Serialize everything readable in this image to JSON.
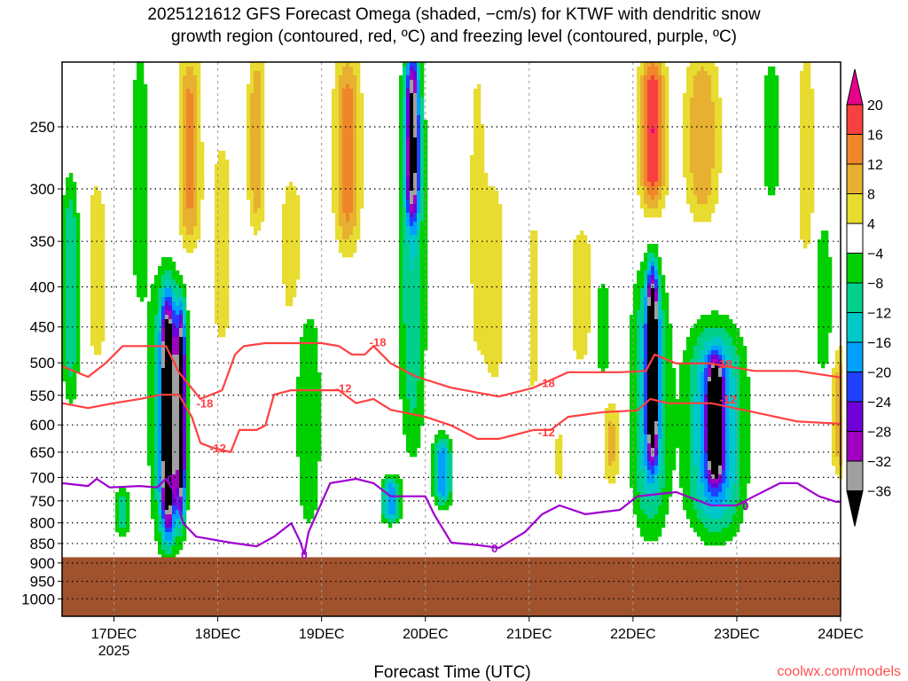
{
  "chart_data": {
    "type": "heatmap",
    "title_lines": [
      "2025121612 GFS Forecast Omega (shaded, −cm/s) for KTWF with dendritic snow",
      "growth region (contoured, red, ºC) and freezing level (contoured, purple, ºC)"
    ],
    "xlabel": "Forecast Time (UTC)",
    "watermark": "coolwx.com/models",
    "x_units": "hours since 2025-12-16 12Z",
    "xlim": [
      0,
      180
    ],
    "ylim_hPa": [
      207,
      1045
    ],
    "y_scale": "log",
    "x_ticks": [
      {
        "hour": 12,
        "label": "17DEC",
        "sublabel": "2025"
      },
      {
        "hour": 36,
        "label": "18DEC"
      },
      {
        "hour": 60,
        "label": "19DEC"
      },
      {
        "hour": 84,
        "label": "20DEC"
      },
      {
        "hour": 108,
        "label": "21DEC"
      },
      {
        "hour": 132,
        "label": "22DEC"
      },
      {
        "hour": 156,
        "label": "23DEC"
      },
      {
        "hour": 180,
        "label": "24DEC"
      }
    ],
    "y_ticks": [
      250,
      300,
      350,
      400,
      450,
      500,
      550,
      600,
      650,
      700,
      750,
      800,
      850,
      900,
      950,
      1000
    ],
    "ground_pressure_hPa": 885,
    "ground_color": "#a0522d",
    "colorbar": {
      "labels": [
        "20",
        "16",
        "12",
        "8",
        "4",
        "−4",
        "−8",
        "−12",
        "−16",
        "−20",
        "−24",
        "−28",
        "−32",
        "−36"
      ],
      "bins": [
        {
          "min": 20,
          "max": 99,
          "color": "#e8008c"
        },
        {
          "min": 16,
          "max": 20,
          "color": "#f84040"
        },
        {
          "min": 12,
          "max": 16,
          "color": "#f0862a"
        },
        {
          "min": 8,
          "max": 12,
          "color": "#e8b030"
        },
        {
          "min": 4,
          "max": 8,
          "color": "#e8dc30"
        },
        {
          "min": -4,
          "max": 4,
          "color": "#ffffff"
        },
        {
          "min": -8,
          "max": -4,
          "color": "#00d000"
        },
        {
          "min": -12,
          "max": -8,
          "color": "#00d08a"
        },
        {
          "min": -16,
          "max": -12,
          "color": "#00c8c8"
        },
        {
          "min": -20,
          "max": -16,
          "color": "#00a0ff"
        },
        {
          "min": -24,
          "max": -20,
          "color": "#2040ff"
        },
        {
          "min": -28,
          "max": -24,
          "color": "#7000d8"
        },
        {
          "min": -32,
          "max": -28,
          "color": "#a000c0"
        },
        {
          "min": -36,
          "max": -32,
          "color": "#a0a0a0"
        },
        {
          "min": -99,
          "max": -36,
          "color": "#000000"
        }
      ]
    },
    "omega_features": [
      {
        "hour": 24.5,
        "half_width_h": 1.5,
        "p_top": 420,
        "p_bottom": 820,
        "peak": -42
      },
      {
        "hour": 24.5,
        "half_width_h": 4,
        "p_top": 380,
        "p_bottom": 850,
        "peak": -14
      },
      {
        "hour": 27.5,
        "half_width_h": 1,
        "p_top": 430,
        "p_bottom": 780,
        "peak": -38
      },
      {
        "hour": 29.5,
        "half_width_h": 2.5,
        "p_top": 200,
        "p_bottom": 360,
        "peak": 14
      },
      {
        "hour": 45,
        "half_width_h": 2,
        "p_top": 200,
        "p_bottom": 340,
        "peak": 12
      },
      {
        "hour": 66,
        "half_width_h": 3,
        "p_top": 200,
        "p_bottom": 360,
        "peak": 15
      },
      {
        "hour": 81,
        "half_width_h": 1.5,
        "p_top": 200,
        "p_bottom": 330,
        "peak": -30
      },
      {
        "hour": 81,
        "half_width_h": 3,
        "p_top": 200,
        "p_bottom": 650,
        "peak": -12
      },
      {
        "hour": 76,
        "half_width_h": 2,
        "p_top": 700,
        "p_bottom": 800,
        "peak": -20
      },
      {
        "hour": 88,
        "half_width_h": 2,
        "p_top": 620,
        "p_bottom": 760,
        "peak": -20
      },
      {
        "hour": 136.5,
        "half_width_h": 1.2,
        "p_top": 380,
        "p_bottom": 660,
        "peak": -42
      },
      {
        "hour": 136,
        "half_width_h": 4,
        "p_top": 380,
        "p_bottom": 820,
        "peak": -16
      },
      {
        "hour": 136.5,
        "half_width_h": 3,
        "p_top": 200,
        "p_bottom": 320,
        "peak": 20
      },
      {
        "hour": 151,
        "half_width_h": 1.5,
        "p_top": 500,
        "p_bottom": 700,
        "peak": -42
      },
      {
        "hour": 151,
        "half_width_h": 6,
        "p_top": 450,
        "p_bottom": 820,
        "peak": -22
      },
      {
        "hour": 148,
        "half_width_h": 4,
        "p_top": 200,
        "p_bottom": 330,
        "peak": 12
      },
      {
        "hour": 2,
        "half_width_h": 2,
        "p_top": 290,
        "p_bottom": 560,
        "peak": -12
      },
      {
        "hour": 18,
        "half_width_h": 2,
        "p_top": 200,
        "p_bottom": 420,
        "peak": -8
      },
      {
        "hour": 57,
        "half_width_h": 3,
        "p_top": 420,
        "p_bottom": 820,
        "peak": -8
      },
      {
        "hour": 8,
        "half_width_h": 3,
        "p_top": 280,
        "p_bottom": 520,
        "peak": 6
      },
      {
        "hour": 37,
        "half_width_h": 3,
        "p_top": 250,
        "p_bottom": 500,
        "peak": 6
      },
      {
        "hour": 53,
        "half_width_h": 3,
        "p_top": 280,
        "p_bottom": 450,
        "peak": 6
      },
      {
        "hour": 100,
        "half_width_h": 3,
        "p_top": 280,
        "p_bottom": 560,
        "peak": 6
      },
      {
        "hour": 109,
        "half_width_h": 2,
        "p_top": 300,
        "p_bottom": 600,
        "peak": 5
      },
      {
        "hour": 120,
        "half_width_h": 3,
        "p_top": 330,
        "p_bottom": 510,
        "peak": 7
      },
      {
        "hour": 127,
        "half_width_h": 2,
        "p_top": 560,
        "p_bottom": 720,
        "peak": 9
      },
      {
        "hour": 125,
        "half_width_h": 2,
        "p_top": 390,
        "p_bottom": 520,
        "peak": -8
      },
      {
        "hour": 164,
        "half_width_h": 3,
        "p_top": 200,
        "p_bottom": 320,
        "peak": -6
      },
      {
        "hour": 176,
        "half_width_h": 2,
        "p_top": 330,
        "p_bottom": 520,
        "peak": -8
      },
      {
        "hour": 180,
        "half_width_h": 2,
        "p_top": 480,
        "p_bottom": 700,
        "peak": 12
      },
      {
        "hour": 172,
        "half_width_h": 2,
        "p_top": 200,
        "p_bottom": 370,
        "peak": 8
      },
      {
        "hour": 96,
        "half_width_h": 2,
        "p_top": 200,
        "p_bottom": 500,
        "peak": 6
      },
      {
        "hour": 14,
        "half_width_h": 2,
        "p_top": 720,
        "p_bottom": 830,
        "peak": -10
      },
      {
        "hour": 115,
        "half_width_h": 2,
        "p_top": 600,
        "p_bottom": 720,
        "peak": 5
      }
    ],
    "contours": [
      {
        "name": "dgz-minus18",
        "color": "#ff4040",
        "value": -18,
        "points": [
          [
            0,
            505
          ],
          [
            6,
            521
          ],
          [
            10,
            501
          ],
          [
            14,
            476
          ],
          [
            24,
            476
          ],
          [
            27,
            514
          ],
          [
            32,
            556
          ],
          [
            37,
            542
          ],
          [
            40,
            488
          ],
          [
            42,
            476
          ],
          [
            47,
            472
          ],
          [
            53,
            472
          ],
          [
            60,
            472
          ],
          [
            64,
            476
          ],
          [
            67,
            488
          ],
          [
            70,
            488
          ],
          [
            72,
            476
          ],
          [
            76,
            501
          ],
          [
            82,
            521
          ],
          [
            90,
            538
          ],
          [
            101,
            552
          ],
          [
            109,
            538
          ],
          [
            117,
            514
          ],
          [
            129,
            514
          ],
          [
            135,
            512
          ],
          [
            137,
            488
          ],
          [
            142,
            501
          ],
          [
            150,
            501
          ],
          [
            160,
            512
          ],
          [
            170,
            512
          ],
          [
            180,
            522
          ]
        ]
      },
      {
        "name": "dgz-minus12",
        "color": "#ff4040",
        "value": -12,
        "points": [
          [
            0,
            563
          ],
          [
            6,
            571
          ],
          [
            12,
            563
          ],
          [
            18,
            556
          ],
          [
            23,
            549
          ],
          [
            27,
            549
          ],
          [
            30,
            586
          ],
          [
            32,
            633
          ],
          [
            35,
            642
          ],
          [
            39,
            650
          ],
          [
            41,
            609
          ],
          [
            45,
            609
          ],
          [
            47,
            601
          ],
          [
            49,
            549
          ],
          [
            53,
            542
          ],
          [
            60,
            542
          ],
          [
            64,
            542
          ],
          [
            68,
            563
          ],
          [
            72,
            556
          ],
          [
            76,
            574
          ],
          [
            84,
            586
          ],
          [
            90,
            601
          ],
          [
            96,
            625
          ],
          [
            101,
            625
          ],
          [
            109,
            609
          ],
          [
            113,
            609
          ],
          [
            117,
            586
          ],
          [
            125,
            578
          ],
          [
            133,
            575
          ],
          [
            136,
            556
          ],
          [
            140,
            563
          ],
          [
            150,
            563
          ],
          [
            160,
            578
          ],
          [
            170,
            594
          ],
          [
            180,
            598
          ]
        ]
      },
      {
        "name": "freezing-level",
        "color": "#a000d0",
        "value": 0,
        "points": [
          [
            0,
            712
          ],
          [
            6,
            718
          ],
          [
            8,
            703
          ],
          [
            11,
            721
          ],
          [
            18,
            718
          ],
          [
            22,
            721
          ],
          [
            24,
            703
          ],
          [
            26,
            731
          ],
          [
            28,
            801
          ],
          [
            31,
            833
          ],
          [
            39,
            848
          ],
          [
            45,
            857
          ],
          [
            49,
            833
          ],
          [
            53,
            801
          ],
          [
            55,
            844
          ],
          [
            56,
            877
          ],
          [
            57,
            822
          ],
          [
            62,
            712
          ],
          [
            68,
            703
          ],
          [
            72,
            712
          ],
          [
            76,
            740
          ],
          [
            84,
            740
          ],
          [
            86,
            780
          ],
          [
            90,
            848
          ],
          [
            96,
            854
          ],
          [
            101,
            861
          ],
          [
            107,
            822
          ],
          [
            111,
            780
          ],
          [
            115,
            760
          ],
          [
            121,
            780
          ],
          [
            129,
            770
          ],
          [
            133,
            740
          ],
          [
            142,
            731
          ],
          [
            150,
            760
          ],
          [
            156,
            760
          ],
          [
            160,
            740
          ],
          [
            166,
            712
          ],
          [
            170,
            712
          ],
          [
            175,
            740
          ],
          [
            179,
            752
          ],
          [
            180,
            752
          ]
        ]
      }
    ],
    "contour_labels": [
      {
        "text": "-18",
        "hour": 33,
        "p": 563,
        "color": "#ff4040"
      },
      {
        "text": "-12",
        "hour": 36,
        "p": 642,
        "color": "#ff4040"
      },
      {
        "text": "-12",
        "hour": 65,
        "p": 538,
        "color": "#ff4040"
      },
      {
        "text": "-18",
        "hour": 73,
        "p": 470,
        "color": "#ff4040"
      },
      {
        "text": "-18",
        "hour": 112,
        "p": 530,
        "color": "#ff4040"
      },
      {
        "text": "-12",
        "hour": 112,
        "p": 612,
        "color": "#ff4040"
      },
      {
        "text": "-18",
        "hour": 153,
        "p": 501,
        "color": "#ff4040"
      },
      {
        "text": "-12",
        "hour": 154,
        "p": 556,
        "color": "#ff4040"
      },
      {
        "text": "0",
        "hour": 25,
        "p": 703,
        "color": "#a000d0"
      },
      {
        "text": "0",
        "hour": 56,
        "p": 877,
        "color": "#a000d0"
      },
      {
        "text": "0",
        "hour": 100,
        "p": 861,
        "color": "#a000d0"
      },
      {
        "text": "0",
        "hour": 158,
        "p": 760,
        "color": "#a000d0"
      }
    ]
  }
}
